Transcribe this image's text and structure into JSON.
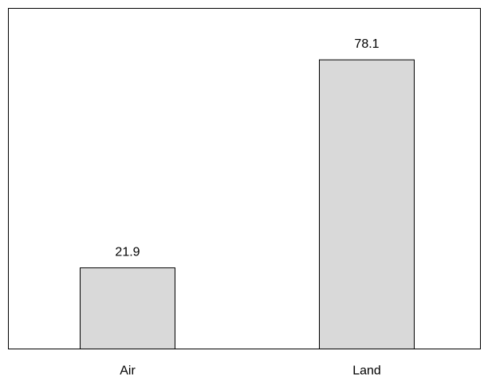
{
  "chart_data": {
    "type": "bar",
    "categories": [
      "Air",
      "Land"
    ],
    "values": [
      21.9,
      78.1
    ],
    "data_labels": [
      "21.9",
      "78.1"
    ],
    "title": "",
    "xlabel": "",
    "ylabel": "",
    "ylim": [
      0,
      92
    ],
    "grid": false,
    "legend": "none",
    "bar_color": "#d9d9d9",
    "edge_color": "#000000"
  }
}
